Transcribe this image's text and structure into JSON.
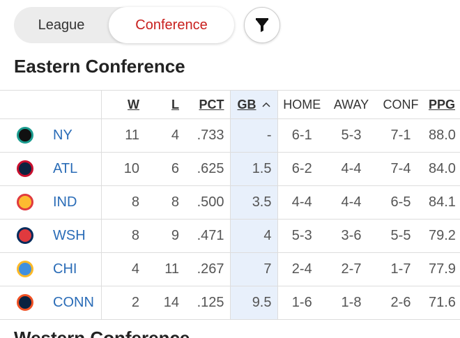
{
  "tabs": [
    {
      "label": "League",
      "active": false
    },
    {
      "label": "Conference",
      "active": true
    }
  ],
  "section_title": "Eastern Conference",
  "table": {
    "columns": [
      "W",
      "L",
      "PCT",
      "GB",
      "HOME",
      "AWAY",
      "CONF",
      "PPG"
    ],
    "sortable": [
      true,
      true,
      true,
      true,
      false,
      false,
      false,
      true
    ],
    "sorted_column": "GB",
    "rows": [
      {
        "team": "NY",
        "cells": [
          "11",
          "4",
          ".733",
          "-",
          "6-1",
          "5-3",
          "7-1",
          "88.0"
        ]
      },
      {
        "team": "ATL",
        "cells": [
          "10",
          "6",
          ".625",
          "1.5",
          "6-2",
          "4-4",
          "7-4",
          "84.0"
        ]
      },
      {
        "team": "IND",
        "cells": [
          "8",
          "8",
          ".500",
          "3.5",
          "4-4",
          "4-4",
          "6-5",
          "84.1"
        ]
      },
      {
        "team": "WSH",
        "cells": [
          "8",
          "9",
          ".471",
          "4",
          "5-3",
          "3-6",
          "5-5",
          "79.2"
        ]
      },
      {
        "team": "CHI",
        "cells": [
          "4",
          "11",
          ".267",
          "7",
          "2-4",
          "2-7",
          "1-7",
          "77.9"
        ]
      },
      {
        "team": "CONN",
        "cells": [
          "2",
          "14",
          ".125",
          "9.5",
          "1-6",
          "1-8",
          "2-6",
          "71.6"
        ]
      }
    ]
  },
  "next_section_title": "Western Conference"
}
